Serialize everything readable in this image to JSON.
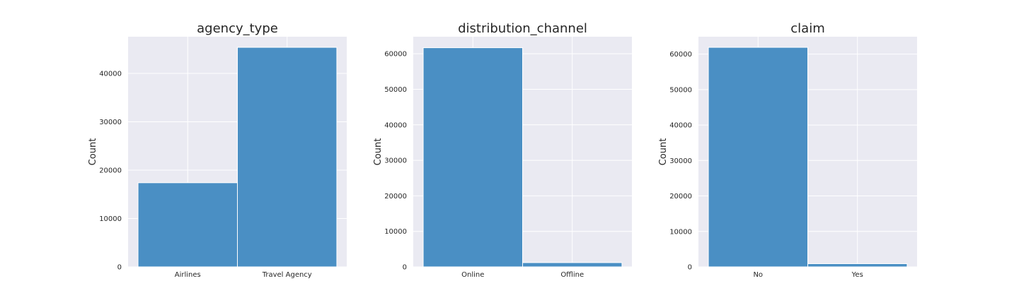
{
  "colors": {
    "bar": "#4a8fc4",
    "bar_edge": "#ffffff",
    "plot_bg": "#eaeaf2",
    "grid": "#ffffff",
    "text": "#262626"
  },
  "chart_data": [
    {
      "type": "bar",
      "title": "agency_type",
      "categories": [
        "Airlines",
        "Travel Agency"
      ],
      "values": [
        17400,
        45400
      ],
      "ylabel": "Count",
      "xlabel": "",
      "ylim": [
        0,
        47600
      ],
      "yticks": [
        0,
        10000,
        20000,
        30000,
        40000
      ],
      "grid": true
    },
    {
      "type": "bar",
      "title": "distribution_channel",
      "categories": [
        "Online",
        "Offline"
      ],
      "values": [
        61700,
        1200
      ],
      "ylabel": "Count",
      "xlabel": "",
      "ylim": [
        0,
        64800
      ],
      "yticks": [
        0,
        10000,
        20000,
        30000,
        40000,
        50000,
        60000
      ],
      "grid": true
    },
    {
      "type": "bar",
      "title": "claim",
      "categories": [
        "No",
        "Yes"
      ],
      "values": [
        61900,
        900
      ],
      "ylabel": "Count",
      "xlabel": "",
      "ylim": [
        0,
        64900
      ],
      "yticks": [
        0,
        10000,
        20000,
        30000,
        40000,
        50000,
        60000
      ],
      "grid": true
    }
  ]
}
